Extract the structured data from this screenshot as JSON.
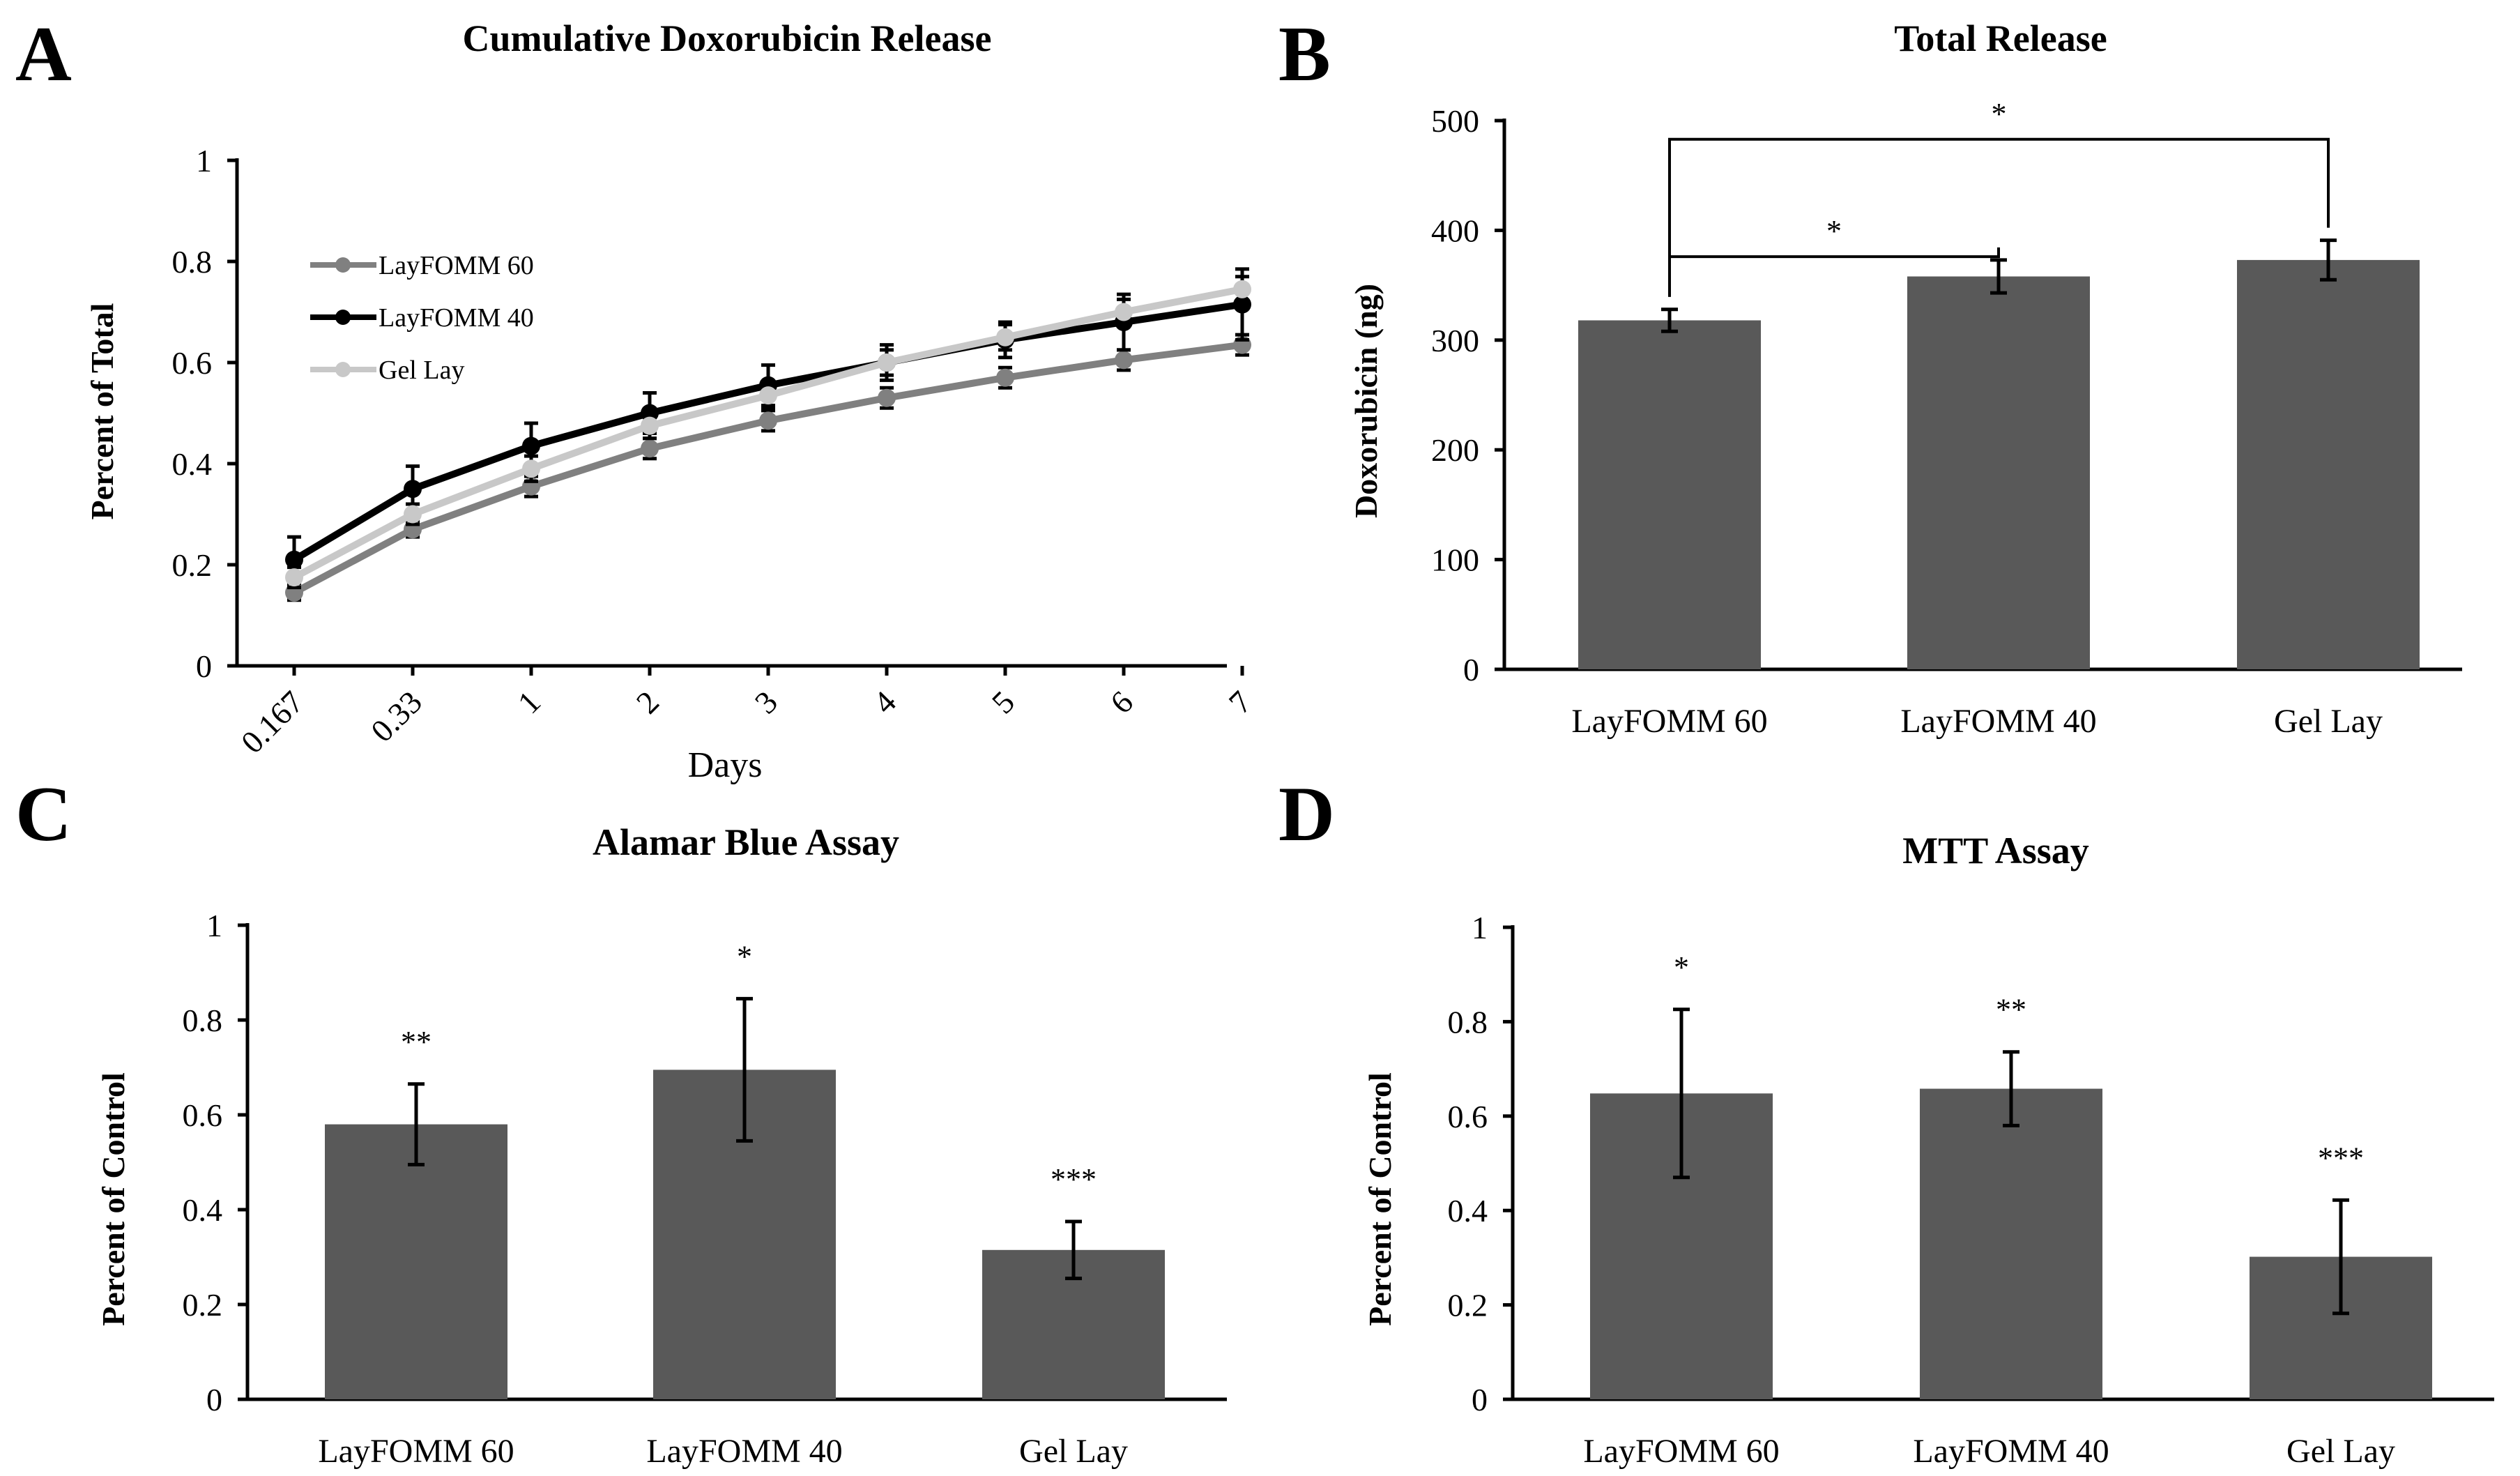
{
  "panels": {
    "A": {
      "letter": "A",
      "title": "Cumulative Doxorubicin Release",
      "ylabel": "Percent of Total",
      "xlabel": "Days"
    },
    "B": {
      "letter": "B",
      "title": "Total Release",
      "ylabel": "Doxorubicin (ng)"
    },
    "C": {
      "letter": "C",
      "title": "Alamar Blue Assay",
      "ylabel": "Percent of Control"
    },
    "D": {
      "letter": "D",
      "title": "MTT Assay",
      "ylabel": "Percent of Control"
    }
  },
  "colors": {
    "bar": "#595959",
    "layfomm60": "#808080",
    "layfomm40": "#000000",
    "gellay": "#c8c8c8"
  },
  "chart_data": [
    {
      "id": "A",
      "type": "line",
      "title": "Cumulative Doxorubicin Release",
      "xlabel": "Days",
      "ylabel": "Percent of Total",
      "categories": [
        "0.167",
        "0.33",
        "1",
        "2",
        "3",
        "4",
        "5",
        "6",
        "7"
      ],
      "ylim": [
        0,
        1
      ],
      "yticks": [
        "0",
        "0.2",
        "0.4",
        "0.6",
        "0.8",
        "1"
      ],
      "legend_position": "upper-left",
      "series": [
        {
          "name": "LayFOMM 60",
          "color": "#808080",
          "values": [
            0.145,
            0.27,
            0.355,
            0.43,
            0.485,
            0.53,
            0.57,
            0.605,
            0.635
          ],
          "errors": [
            0.015,
            0.015,
            0.02,
            0.02,
            0.02,
            0.02,
            0.02,
            0.02,
            0.02
          ]
        },
        {
          "name": "LayFOMM 40",
          "color": "#000000",
          "values": [
            0.21,
            0.35,
            0.435,
            0.5,
            0.555,
            0.6,
            0.645,
            0.68,
            0.715
          ],
          "errors": [
            0.045,
            0.045,
            0.045,
            0.04,
            0.04,
            0.035,
            0.035,
            0.055,
            0.07
          ]
        },
        {
          "name": "Gel Lay",
          "color": "#c8c8c8",
          "values": [
            0.175,
            0.3,
            0.39,
            0.475,
            0.535,
            0.6,
            0.65,
            0.7,
            0.745
          ],
          "errors": [
            0.02,
            0.02,
            0.025,
            0.025,
            0.025,
            0.025,
            0.025,
            0.025,
            0.025
          ]
        }
      ]
    },
    {
      "id": "B",
      "type": "bar",
      "title": "Total Release",
      "ylabel": "Doxorubicin (ng)",
      "categories": [
        "LayFOMM 60",
        "LayFOMM 40",
        "Gel Lay"
      ],
      "values": [
        318,
        358,
        373
      ],
      "errors": [
        10,
        15,
        18
      ],
      "ylim": [
        0,
        500
      ],
      "yticks": [
        "0",
        "100",
        "200",
        "300",
        "400",
        "500"
      ],
      "significance": [
        {
          "from": 0,
          "to": 1,
          "label": "*"
        },
        {
          "from": 0,
          "to": 2,
          "label": "*"
        }
      ]
    },
    {
      "id": "C",
      "type": "bar",
      "title": "Alamar Blue Assay",
      "ylabel": "Percent of Control",
      "categories": [
        "LayFOMM 60",
        "LayFOMM 40",
        "Gel Lay"
      ],
      "values": [
        0.58,
        0.695,
        0.315
      ],
      "errors": [
        0.085,
        0.15,
        0.06
      ],
      "ylim": [
        0,
        1
      ],
      "yticks": [
        "0",
        "0.2",
        "0.4",
        "0.6",
        "0.8",
        "1"
      ],
      "annotations": [
        "**",
        "*",
        "***"
      ]
    },
    {
      "id": "D",
      "type": "bar",
      "title": "MTT Assay",
      "ylabel": "Percent of Control",
      "categories": [
        "LayFOMM 60",
        "LayFOMM 40",
        "Gel Lay"
      ],
      "values": [
        0.648,
        0.658,
        0.302
      ],
      "errors": [
        0.178,
        0.078,
        0.12
      ],
      "ylim": [
        0,
        1
      ],
      "yticks": [
        "0",
        "0.2",
        "0.4",
        "0.6",
        "0.8",
        "1"
      ],
      "annotations": [
        "*",
        "**",
        "***"
      ]
    }
  ]
}
